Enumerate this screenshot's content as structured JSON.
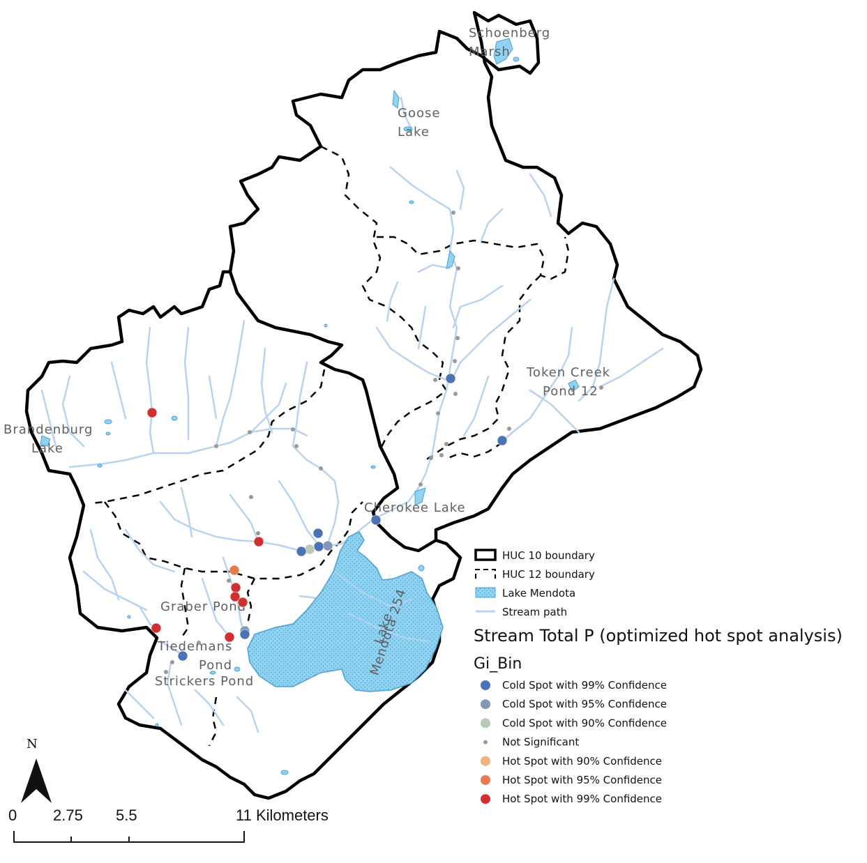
{
  "place_labels": {
    "schoenberg_1": "Schoenberg",
    "schoenberg_2": "Marsh",
    "goose_1": "Goose",
    "goose_2": "Lake",
    "token_1": "Token Creek",
    "token_2": "Pond 12",
    "brandenburg_1": "Brandenburg",
    "brandenburg_2": "Lake",
    "cherokee": "Cherokee Lake",
    "graber": "Graber Pond",
    "tiedemans_1": "Tiedemans",
    "tiedemans_2": "Pond",
    "strickers": "Strickers Pond",
    "mendota_1": "Lake",
    "mendota_2": "Mendota 254"
  },
  "legend": {
    "huc10": "HUC 10 boundary",
    "huc12": "HUC 12 boundary",
    "lake": "Lake Mendota",
    "stream": "Stream path",
    "title": "Stream Total P (optimized hot spot analysis)",
    "subtitle": "Gi_Bin",
    "classes": [
      {
        "label": "Cold Spot with 99% Confidence",
        "color": "#4a72b5",
        "symbol": "dot"
      },
      {
        "label": "Cold Spot with 95% Confidence",
        "color": "#8398b5",
        "symbol": "dot"
      },
      {
        "label": "Cold Spot with 90% Confidence",
        "color": "#b9cab8",
        "symbol": "dot"
      },
      {
        "label": "Not Significant",
        "color": "#999999",
        "symbol": "small-dot"
      },
      {
        "label": "Hot Spot with 90% Confidence",
        "color": "#f2b27e",
        "symbol": "dot"
      },
      {
        "label": "Hot Spot with 95% Confidence",
        "color": "#ea7a4e",
        "symbol": "dot"
      },
      {
        "label": "Hot Spot with 99% Confidence",
        "color": "#d03030",
        "symbol": "dot"
      }
    ]
  },
  "north_arrow": {
    "label": "N"
  },
  "scale_bar": {
    "labels": [
      "0",
      "2.75",
      "5.5",
      "11 Kilometers"
    ]
  },
  "colors": {
    "boundary": "#000000",
    "stream": "#b8d3f0",
    "lake_fill": "#8fd3f0",
    "lake_stipple": "#4aa8d8",
    "lake_outline": "#4aa0d0"
  }
}
